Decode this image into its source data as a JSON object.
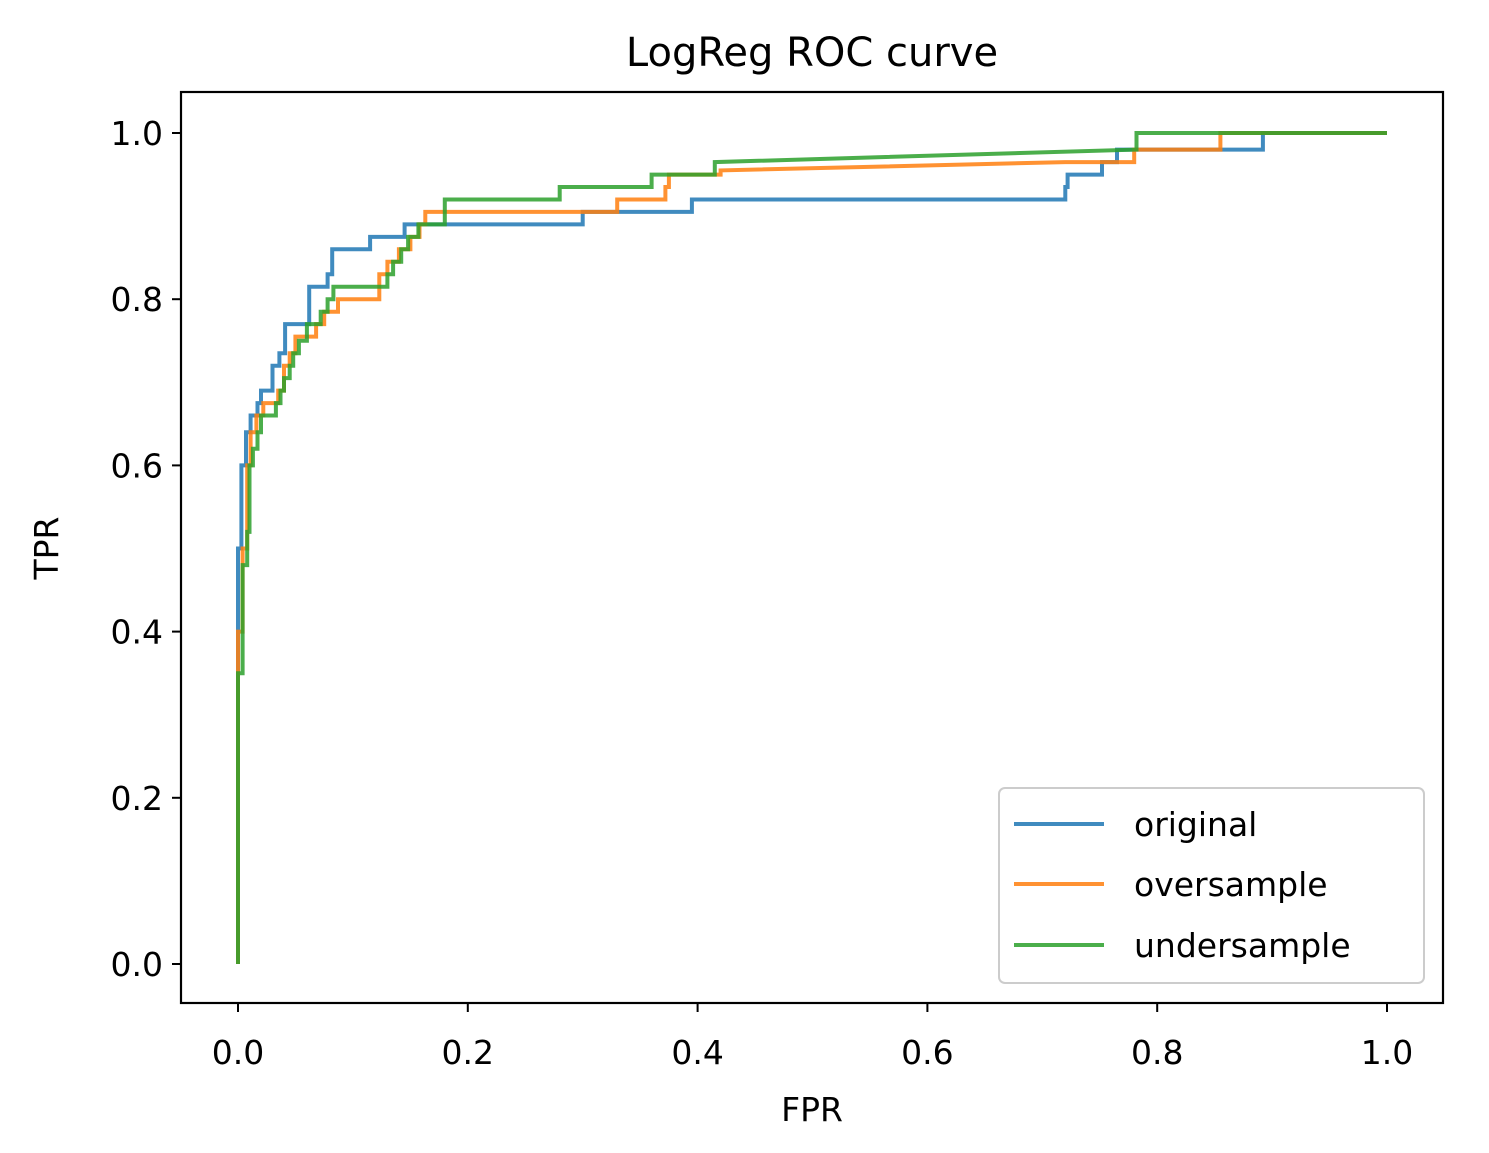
{
  "chart_data": {
    "type": "line",
    "title": "LogReg ROC curve",
    "xlabel": "FPR",
    "ylabel": "TPR",
    "xlim": [
      -0.05,
      1.05
    ],
    "ylim": [
      -0.05,
      1.05
    ],
    "xticks": [
      0.0,
      0.2,
      0.4,
      0.6,
      0.8,
      1.0
    ],
    "xtick_labels": [
      "0.0",
      "0.2",
      "0.4",
      "0.6",
      "0.8",
      "1.0"
    ],
    "yticks": [
      0.0,
      0.2,
      0.4,
      0.6,
      0.8,
      1.0
    ],
    "ytick_labels": [
      "0.0",
      "0.2",
      "0.4",
      "0.6",
      "0.8",
      "1.0"
    ],
    "grid": false,
    "legend_position": "lower-right",
    "series": [
      {
        "name": "original",
        "color": "#1f77b4",
        "points": [
          [
            0.0,
            0.0
          ],
          [
            0.0,
            0.5
          ],
          [
            0.003,
            0.5
          ],
          [
            0.003,
            0.6
          ],
          [
            0.007,
            0.6
          ],
          [
            0.007,
            0.64
          ],
          [
            0.011,
            0.64
          ],
          [
            0.011,
            0.66
          ],
          [
            0.017,
            0.66
          ],
          [
            0.017,
            0.675
          ],
          [
            0.02,
            0.675
          ],
          [
            0.02,
            0.69
          ],
          [
            0.03,
            0.69
          ],
          [
            0.03,
            0.72
          ],
          [
            0.036,
            0.72
          ],
          [
            0.036,
            0.735
          ],
          [
            0.041,
            0.735
          ],
          [
            0.041,
            0.77
          ],
          [
            0.062,
            0.77
          ],
          [
            0.062,
            0.815
          ],
          [
            0.078,
            0.815
          ],
          [
            0.078,
            0.83
          ],
          [
            0.082,
            0.83
          ],
          [
            0.082,
            0.86
          ],
          [
            0.115,
            0.86
          ],
          [
            0.115,
            0.875
          ],
          [
            0.145,
            0.875
          ],
          [
            0.145,
            0.89
          ],
          [
            0.3,
            0.89
          ],
          [
            0.3,
            0.905
          ],
          [
            0.395,
            0.905
          ],
          [
            0.395,
            0.92
          ],
          [
            0.72,
            0.92
          ],
          [
            0.72,
            0.935
          ],
          [
            0.722,
            0.935
          ],
          [
            0.722,
            0.95
          ],
          [
            0.752,
            0.95
          ],
          [
            0.752,
            0.965
          ],
          [
            0.765,
            0.965
          ],
          [
            0.765,
            0.98
          ],
          [
            0.892,
            0.98
          ],
          [
            0.892,
            0.99
          ],
          [
            0.892,
            1.0
          ],
          [
            1.0,
            1.0
          ]
        ]
      },
      {
        "name": "oversample",
        "color": "#ff7f0e",
        "points": [
          [
            0.0,
            0.0
          ],
          [
            0.0,
            0.4
          ],
          [
            0.004,
            0.4
          ],
          [
            0.004,
            0.5
          ],
          [
            0.008,
            0.5
          ],
          [
            0.008,
            0.6
          ],
          [
            0.011,
            0.6
          ],
          [
            0.011,
            0.64
          ],
          [
            0.016,
            0.64
          ],
          [
            0.016,
            0.66
          ],
          [
            0.022,
            0.66
          ],
          [
            0.022,
            0.675
          ],
          [
            0.035,
            0.675
          ],
          [
            0.035,
            0.69
          ],
          [
            0.04,
            0.69
          ],
          [
            0.04,
            0.72
          ],
          [
            0.045,
            0.72
          ],
          [
            0.045,
            0.735
          ],
          [
            0.05,
            0.735
          ],
          [
            0.05,
            0.755
          ],
          [
            0.068,
            0.755
          ],
          [
            0.068,
            0.77
          ],
          [
            0.075,
            0.77
          ],
          [
            0.075,
            0.785
          ],
          [
            0.087,
            0.785
          ],
          [
            0.087,
            0.8
          ],
          [
            0.123,
            0.8
          ],
          [
            0.123,
            0.83
          ],
          [
            0.13,
            0.83
          ],
          [
            0.13,
            0.845
          ],
          [
            0.14,
            0.845
          ],
          [
            0.14,
            0.86
          ],
          [
            0.15,
            0.86
          ],
          [
            0.15,
            0.875
          ],
          [
            0.158,
            0.875
          ],
          [
            0.158,
            0.89
          ],
          [
            0.163,
            0.89
          ],
          [
            0.163,
            0.905
          ],
          [
            0.33,
            0.905
          ],
          [
            0.33,
            0.92
          ],
          [
            0.372,
            0.92
          ],
          [
            0.372,
            0.935
          ],
          [
            0.375,
            0.935
          ],
          [
            0.375,
            0.95
          ],
          [
            0.42,
            0.95
          ],
          [
            0.42,
            0.955
          ],
          [
            0.72,
            0.965
          ],
          [
            0.78,
            0.965
          ],
          [
            0.78,
            0.98
          ],
          [
            0.855,
            0.98
          ],
          [
            0.855,
            1.0
          ],
          [
            1.0,
            1.0
          ]
        ]
      },
      {
        "name": "undersample",
        "color": "#2ca02c",
        "points": [
          [
            0.0,
            0.0
          ],
          [
            0.0,
            0.35
          ],
          [
            0.004,
            0.35
          ],
          [
            0.004,
            0.48
          ],
          [
            0.008,
            0.48
          ],
          [
            0.008,
            0.52
          ],
          [
            0.01,
            0.52
          ],
          [
            0.01,
            0.6
          ],
          [
            0.013,
            0.6
          ],
          [
            0.013,
            0.62
          ],
          [
            0.017,
            0.62
          ],
          [
            0.017,
            0.64
          ],
          [
            0.02,
            0.64
          ],
          [
            0.02,
            0.66
          ],
          [
            0.033,
            0.66
          ],
          [
            0.033,
            0.675
          ],
          [
            0.037,
            0.675
          ],
          [
            0.037,
            0.69
          ],
          [
            0.04,
            0.69
          ],
          [
            0.04,
            0.705
          ],
          [
            0.045,
            0.705
          ],
          [
            0.045,
            0.72
          ],
          [
            0.048,
            0.72
          ],
          [
            0.048,
            0.735
          ],
          [
            0.053,
            0.735
          ],
          [
            0.053,
            0.75
          ],
          [
            0.06,
            0.75
          ],
          [
            0.06,
            0.77
          ],
          [
            0.072,
            0.77
          ],
          [
            0.072,
            0.785
          ],
          [
            0.078,
            0.785
          ],
          [
            0.078,
            0.8
          ],
          [
            0.083,
            0.8
          ],
          [
            0.083,
            0.815
          ],
          [
            0.13,
            0.815
          ],
          [
            0.13,
            0.83
          ],
          [
            0.135,
            0.83
          ],
          [
            0.135,
            0.845
          ],
          [
            0.142,
            0.845
          ],
          [
            0.142,
            0.86
          ],
          [
            0.148,
            0.86
          ],
          [
            0.148,
            0.875
          ],
          [
            0.157,
            0.875
          ],
          [
            0.157,
            0.89
          ],
          [
            0.18,
            0.89
          ],
          [
            0.18,
            0.92
          ],
          [
            0.28,
            0.92
          ],
          [
            0.28,
            0.935
          ],
          [
            0.36,
            0.935
          ],
          [
            0.36,
            0.95
          ],
          [
            0.415,
            0.95
          ],
          [
            0.415,
            0.965
          ],
          [
            0.782,
            0.98
          ],
          [
            0.782,
            1.0
          ],
          [
            1.0,
            1.0
          ]
        ]
      }
    ]
  }
}
